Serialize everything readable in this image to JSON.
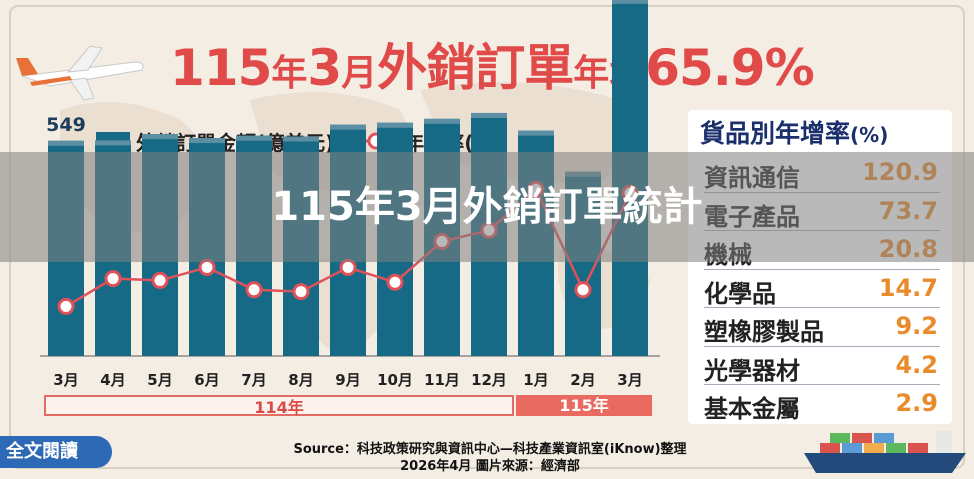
{
  "header": {
    "title_parts": [
      {
        "text": "115",
        "size": "big"
      },
      {
        "text": "年",
        "size": "small"
      },
      {
        "text": "3",
        "size": "big"
      },
      {
        "text": "月",
        "size": "small"
      },
      {
        "text": "外銷訂單",
        "size": "big"
      },
      {
        "text": "年增",
        "size": "small"
      },
      {
        "text": "65.9%",
        "size": "big"
      }
    ]
  },
  "legend": {
    "bar_label": "外銷訂單金額(億美元)",
    "line_label": "年增率(%)"
  },
  "overlay_caption": "115年3月外銷訂單統計",
  "year_labels": {
    "y114": "114年",
    "y115": "115年"
  },
  "chart_data": {
    "type": "bar",
    "categories": [
      "3月",
      "4月",
      "5月",
      "6月",
      "7月",
      "8月",
      "9月",
      "10月",
      "11月",
      "12月",
      "1月",
      "2月",
      "3月"
    ],
    "series": [
      {
        "name": "外銷訂單金額(億美元)",
        "values": [
          549,
          550,
          566,
          556,
          562,
          560,
          590,
          595,
          605,
          620,
          575,
          470,
          911
        ],
        "type": "bar",
        "labeled_indices": [
          0,
          12
        ]
      },
      {
        "name": "年增率(%)",
        "values": [
          5,
          20,
          19,
          26,
          14,
          13,
          26,
          18,
          40,
          46,
          68,
          14,
          66
        ],
        "type": "line"
      }
    ],
    "ylim": [
      0,
      1000
    ],
    "y2lim": [
      -40,
      100
    ],
    "colors": {
      "bar": "#176a86",
      "bar_top": "#5c8fa3",
      "line": "#e0525a",
      "marker_fill": "#ffffff"
    }
  },
  "growth_by_category": {
    "title": "貨品別年增率",
    "title_unit": "(%)",
    "rows": [
      {
        "name": "資訊通信",
        "value": "120.9"
      },
      {
        "name": "電子產品",
        "value": "73.7"
      },
      {
        "name": "機械",
        "value": "20.8"
      },
      {
        "name": "化學品",
        "value": "14.7"
      },
      {
        "name": "塑橡膠製品",
        "value": "9.2"
      },
      {
        "name": "光學器材",
        "value": "4.2"
      },
      {
        "name": "基本金屬",
        "value": "2.9"
      }
    ]
  },
  "footer": {
    "source_line1": "Source：科技政策研究與資訊中心—科技產業資訊室(iKnow)整理",
    "source_line2": "2026年4月  圖片來源：經濟部",
    "read_more": "全文閱讀"
  }
}
